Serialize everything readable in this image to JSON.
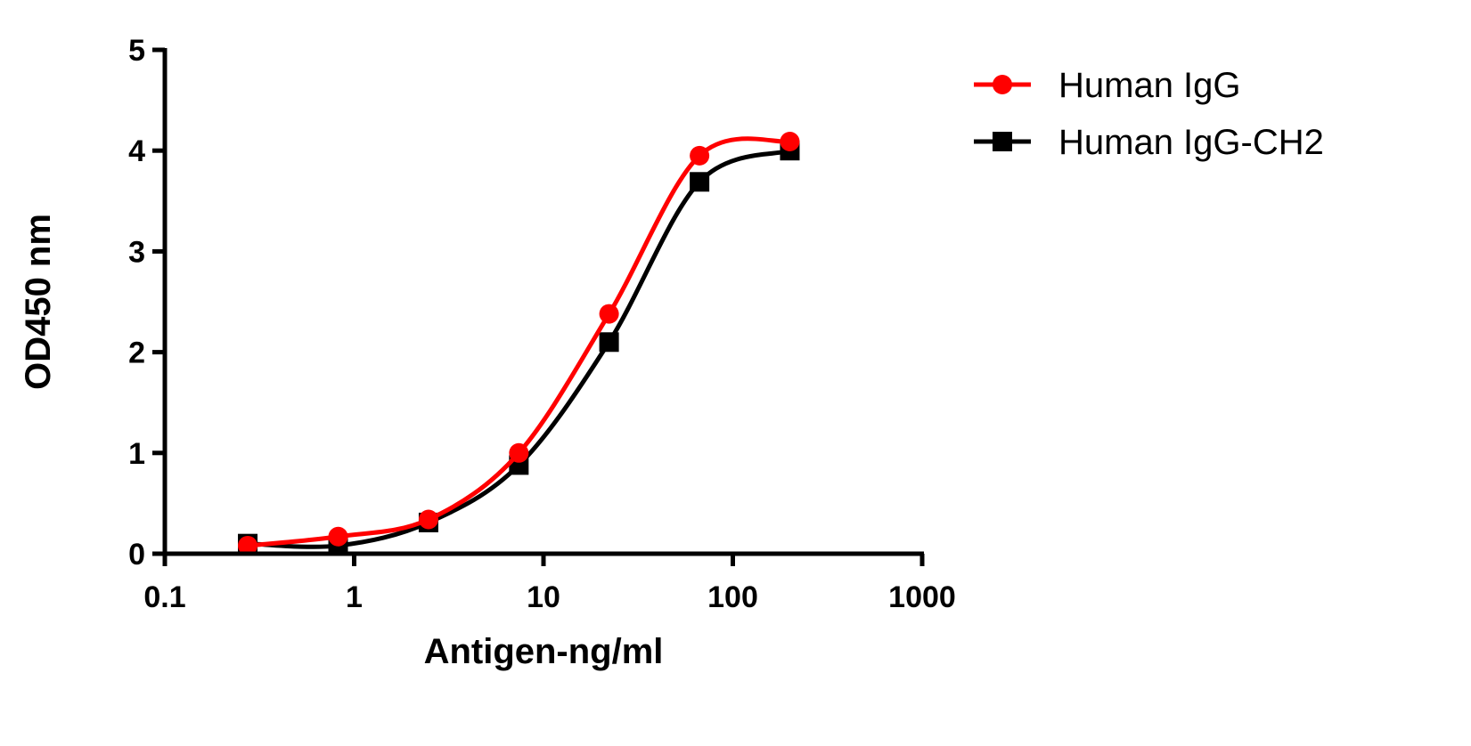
{
  "chart_data": {
    "type": "line",
    "title": "",
    "xlabel": "Antigen-ng/ml",
    "ylabel": "OD450 nm",
    "xscale": "log",
    "xlim": [
      0.1,
      1000
    ],
    "ylim": [
      0,
      5
    ],
    "xticks": [
      "0.1",
      "1",
      "10",
      "100",
      "1000"
    ],
    "yticks": [
      "0",
      "1",
      "2",
      "3",
      "4",
      "5"
    ],
    "grid": false,
    "legend_position": "top-right",
    "x": [
      0.274,
      0.823,
      2.47,
      7.41,
      22.2,
      66.7,
      200
    ],
    "series": [
      {
        "name": "Human IgG",
        "color": "#ff0000",
        "marker": "circle",
        "values": [
          0.08,
          0.17,
          0.34,
          1.0,
          2.38,
          3.95,
          4.09
        ]
      },
      {
        "name": "Human IgG-CH2",
        "color": "#000000",
        "marker": "square",
        "values": [
          0.1,
          0.08,
          0.31,
          0.88,
          2.1,
          3.69,
          4.0
        ]
      }
    ]
  }
}
